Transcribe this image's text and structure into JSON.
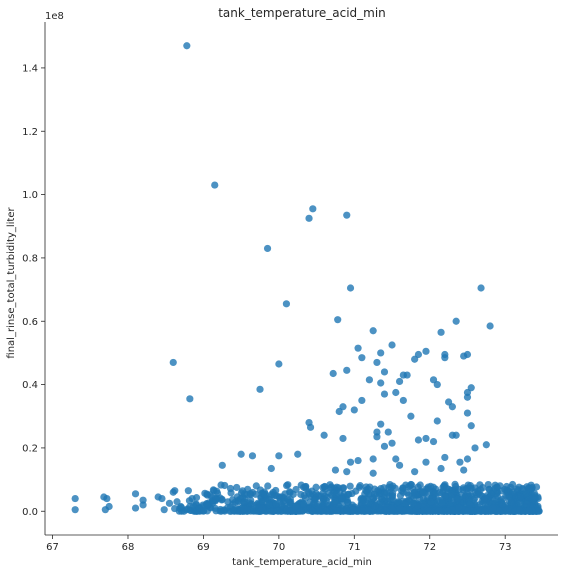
{
  "chart_data": {
    "type": "scatter",
    "title": "tank_temperature_acid_min",
    "xlabel": "tank_temperature_acid_min",
    "ylabel": "final_rinse_total_turbidity_liter",
    "y_offset_text": "1e8",
    "xlim": [
      66.9,
      73.7
    ],
    "ylim": [
      -0.075,
      1.545
    ],
    "y_scale_note": "y values in units of 1e8",
    "x_ticks": [
      67,
      68,
      69,
      70,
      71,
      72,
      73
    ],
    "x_tick_labels": [
      "67",
      "68",
      "69",
      "70",
      "71",
      "72",
      "73"
    ],
    "y_ticks": [
      0.0,
      0.2,
      0.4,
      0.6,
      0.8,
      1.0,
      1.2,
      1.4
    ],
    "y_tick_labels": [
      "0.0",
      "0.2",
      "0.4",
      "0.6",
      "0.8",
      "1.0",
      "1.2",
      "1.4"
    ],
    "grid": false,
    "legend": "none",
    "marker_color": "#1f77b4",
    "marker_alpha": 0.8,
    "outliers": [
      [
        68.78,
        1.47
      ],
      [
        69.15,
        1.03
      ],
      [
        70.45,
        0.955
      ],
      [
        70.4,
        0.925
      ],
      [
        70.9,
        0.935
      ],
      [
        69.85,
        0.83
      ],
      [
        70.95,
        0.705
      ],
      [
        72.68,
        0.705
      ],
      [
        70.1,
        0.655
      ],
      [
        70.78,
        0.605
      ],
      [
        72.8,
        0.585
      ],
      [
        72.35,
        0.6
      ],
      [
        71.25,
        0.57
      ],
      [
        72.15,
        0.565
      ],
      [
        71.05,
        0.515
      ],
      [
        71.5,
        0.525
      ],
      [
        71.35,
        0.5
      ],
      [
        71.95,
        0.505
      ],
      [
        71.85,
        0.495
      ],
      [
        71.1,
        0.485
      ],
      [
        72.2,
        0.495
      ],
      [
        72.5,
        0.495
      ],
      [
        72.45,
        0.49
      ],
      [
        70.0,
        0.465
      ],
      [
        68.6,
        0.47
      ],
      [
        71.3,
        0.47
      ],
      [
        71.8,
        0.48
      ],
      [
        72.2,
        0.485
      ],
      [
        70.72,
        0.435
      ],
      [
        70.9,
        0.445
      ],
      [
        71.4,
        0.44
      ],
      [
        71.65,
        0.43
      ],
      [
        71.7,
        0.43
      ],
      [
        71.2,
        0.415
      ],
      [
        72.05,
        0.415
      ],
      [
        71.35,
        0.405
      ],
      [
        72.1,
        0.4
      ],
      [
        71.6,
        0.41
      ],
      [
        72.55,
        0.39
      ],
      [
        72.5,
        0.375
      ],
      [
        69.75,
        0.385
      ],
      [
        71.55,
        0.375
      ],
      [
        71.0,
        0.32
      ],
      [
        72.25,
        0.345
      ],
      [
        72.3,
        0.33
      ],
      [
        68.82,
        0.355
      ],
      [
        70.85,
        0.33
      ],
      [
        71.1,
        0.35
      ],
      [
        71.4,
        0.37
      ],
      [
        72.5,
        0.36
      ],
      [
        70.8,
        0.315
      ],
      [
        71.65,
        0.35
      ],
      [
        72.5,
        0.31
      ],
      [
        71.35,
        0.275
      ],
      [
        70.4,
        0.28
      ],
      [
        70.42,
        0.265
      ],
      [
        71.75,
        0.3
      ],
      [
        72.1,
        0.285
      ],
      [
        72.55,
        0.27
      ],
      [
        71.3,
        0.25
      ],
      [
        70.6,
        0.24
      ],
      [
        71.45,
        0.25
      ],
      [
        70.85,
        0.23
      ],
      [
        71.3,
        0.235
      ],
      [
        72.3,
        0.24
      ],
      [
        71.95,
        0.23
      ],
      [
        72.35,
        0.24
      ],
      [
        72.75,
        0.21
      ],
      [
        71.85,
        0.225
      ],
      [
        71.5,
        0.215
      ],
      [
        72.05,
        0.22
      ],
      [
        71.4,
        0.205
      ],
      [
        72.6,
        0.2
      ],
      [
        70.25,
        0.18
      ],
      [
        69.5,
        0.18
      ],
      [
        69.65,
        0.175
      ],
      [
        70.0,
        0.175
      ],
      [
        71.25,
        0.165
      ],
      [
        71.05,
        0.16
      ],
      [
        71.55,
        0.165
      ],
      [
        72.2,
        0.17
      ],
      [
        72.5,
        0.165
      ],
      [
        71.95,
        0.155
      ],
      [
        70.95,
        0.155
      ],
      [
        72.4,
        0.155
      ],
      [
        69.25,
        0.145
      ],
      [
        71.6,
        0.145
      ],
      [
        69.9,
        0.135
      ],
      [
        70.75,
        0.13
      ],
      [
        71.8,
        0.125
      ],
      [
        72.15,
        0.135
      ],
      [
        72.45,
        0.13
      ],
      [
        70.9,
        0.125
      ],
      [
        71.25,
        0.12
      ]
    ],
    "bottom_points": [
      [
        67.3,
        0.04
      ],
      [
        67.3,
        0.005
      ],
      [
        67.68,
        0.045
      ],
      [
        67.72,
        0.04
      ],
      [
        67.7,
        0.005
      ],
      [
        67.75,
        0.015
      ],
      [
        68.1,
        0.055
      ],
      [
        68.1,
        0.01
      ],
      [
        68.2,
        0.035
      ],
      [
        68.2,
        0.02
      ],
      [
        68.4,
        0.045
      ],
      [
        68.45,
        0.04
      ],
      [
        68.48,
        0.005
      ],
      [
        68.55,
        0.025
      ],
      [
        68.6,
        0.06
      ],
      [
        68.62,
        0.065
      ],
      [
        68.65,
        0.03
      ],
      [
        68.7,
        0.015
      ],
      [
        68.8,
        0.065
      ],
      [
        68.85,
        0.04
      ]
    ]
  }
}
